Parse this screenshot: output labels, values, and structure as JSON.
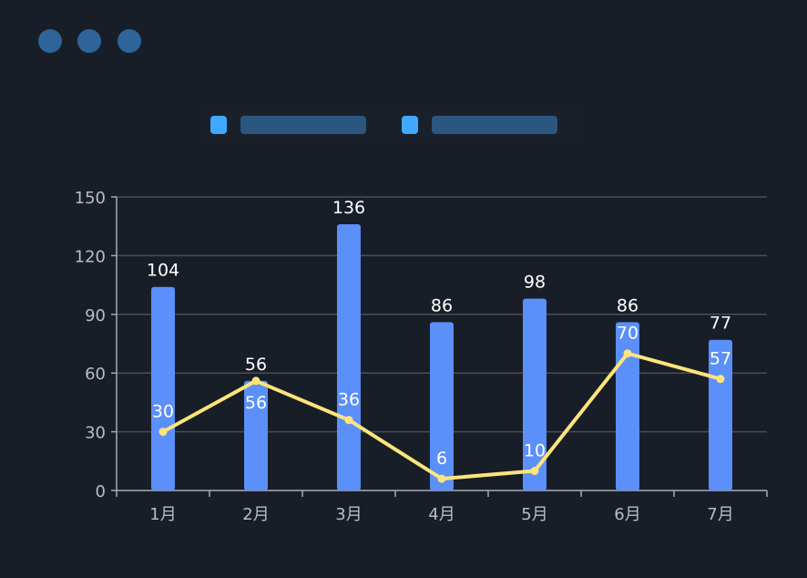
{
  "window_dots": [
    "#2e6499",
    "#2e6499",
    "#2e6499"
  ],
  "legend": [
    {
      "swatch_color": "#40a9ff",
      "label_placeholder_color": "#2b567f"
    },
    {
      "swatch_color": "#40a9ff",
      "label_placeholder_color": "#2b567f"
    }
  ],
  "chart_data": {
    "type": "bar+line",
    "categories": [
      "1月",
      "2月",
      "3月",
      "4月",
      "5月",
      "6月",
      "7月"
    ],
    "series": [
      {
        "type": "bar",
        "values": [
          104,
          56,
          136,
          86,
          98,
          86,
          77
        ],
        "color": "#5b8ff9"
      },
      {
        "type": "line",
        "values": [
          30,
          56,
          36,
          6,
          10,
          70,
          57
        ],
        "color": "#ffe47a"
      }
    ],
    "ylim": [
      0,
      150
    ],
    "yticks": [
      0,
      30,
      60,
      90,
      120,
      150
    ],
    "grid": true,
    "legend": "top-center",
    "colors": {
      "axis": "#a8a8b8",
      "grid": "#4a4d57",
      "label": "#ffffff",
      "tick_label": "#b8bccb"
    }
  }
}
